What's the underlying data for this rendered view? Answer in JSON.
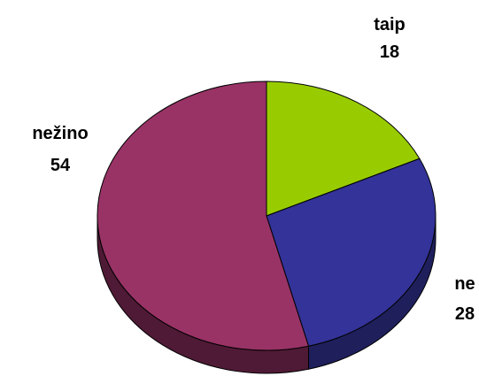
{
  "chart_data": {
    "type": "pie",
    "style": "3d-pie",
    "legend": "none",
    "categories": [
      "taip",
      "ne",
      "nežino"
    ],
    "values": [
      18,
      28,
      54
    ],
    "colors": [
      "#99cc00",
      "#333399",
      "#993366"
    ],
    "side_colors": [
      "#4d6600",
      "#1f1f5c",
      "#4f1a35"
    ],
    "labels": [
      {
        "name": "taip",
        "value": "18"
      },
      {
        "name": "ne",
        "value": "28"
      },
      {
        "name": "nežino",
        "value": "54"
      }
    ]
  }
}
